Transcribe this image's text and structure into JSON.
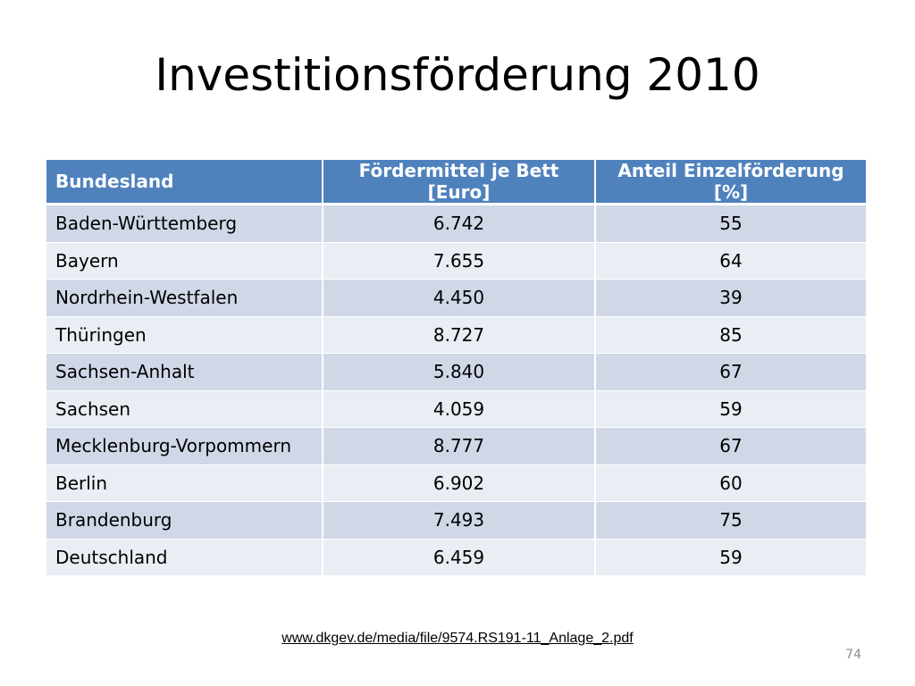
{
  "slide": {
    "title": "Investitionsförderung 2010",
    "source": "www.dkgev.de/media/file/9574.RS191-11_Anlage_2.pdf",
    "page_number": "74"
  },
  "table": {
    "headers": [
      "Bundesland",
      "Fördermittel je Bett [Euro]",
      "Anteil Einzelförderung [%]"
    ],
    "rows": [
      [
        "Baden-Württemberg",
        "6.742",
        "55"
      ],
      [
        "Bayern",
        "7.655",
        "64"
      ],
      [
        "Nordrhein-Westfalen",
        "4.450",
        "39"
      ],
      [
        "Thüringen",
        "8.727",
        "85"
      ],
      [
        "Sachsen-Anhalt",
        "5.840",
        "67"
      ],
      [
        "Sachsen",
        "4.059",
        "59"
      ],
      [
        "Mecklenburg-Vorpommern",
        "8.777",
        "67"
      ],
      [
        "Berlin",
        "6.902",
        "60"
      ],
      [
        "Brandenburg",
        "7.493",
        "75"
      ],
      [
        "Deutschland",
        "6.459",
        "59"
      ]
    ]
  },
  "colors": {
    "header_bg": "#4f81bd",
    "row_odd_bg": "#d0d8e8",
    "row_even_bg": "#e9edf4",
    "header_text": "#ffffff"
  }
}
